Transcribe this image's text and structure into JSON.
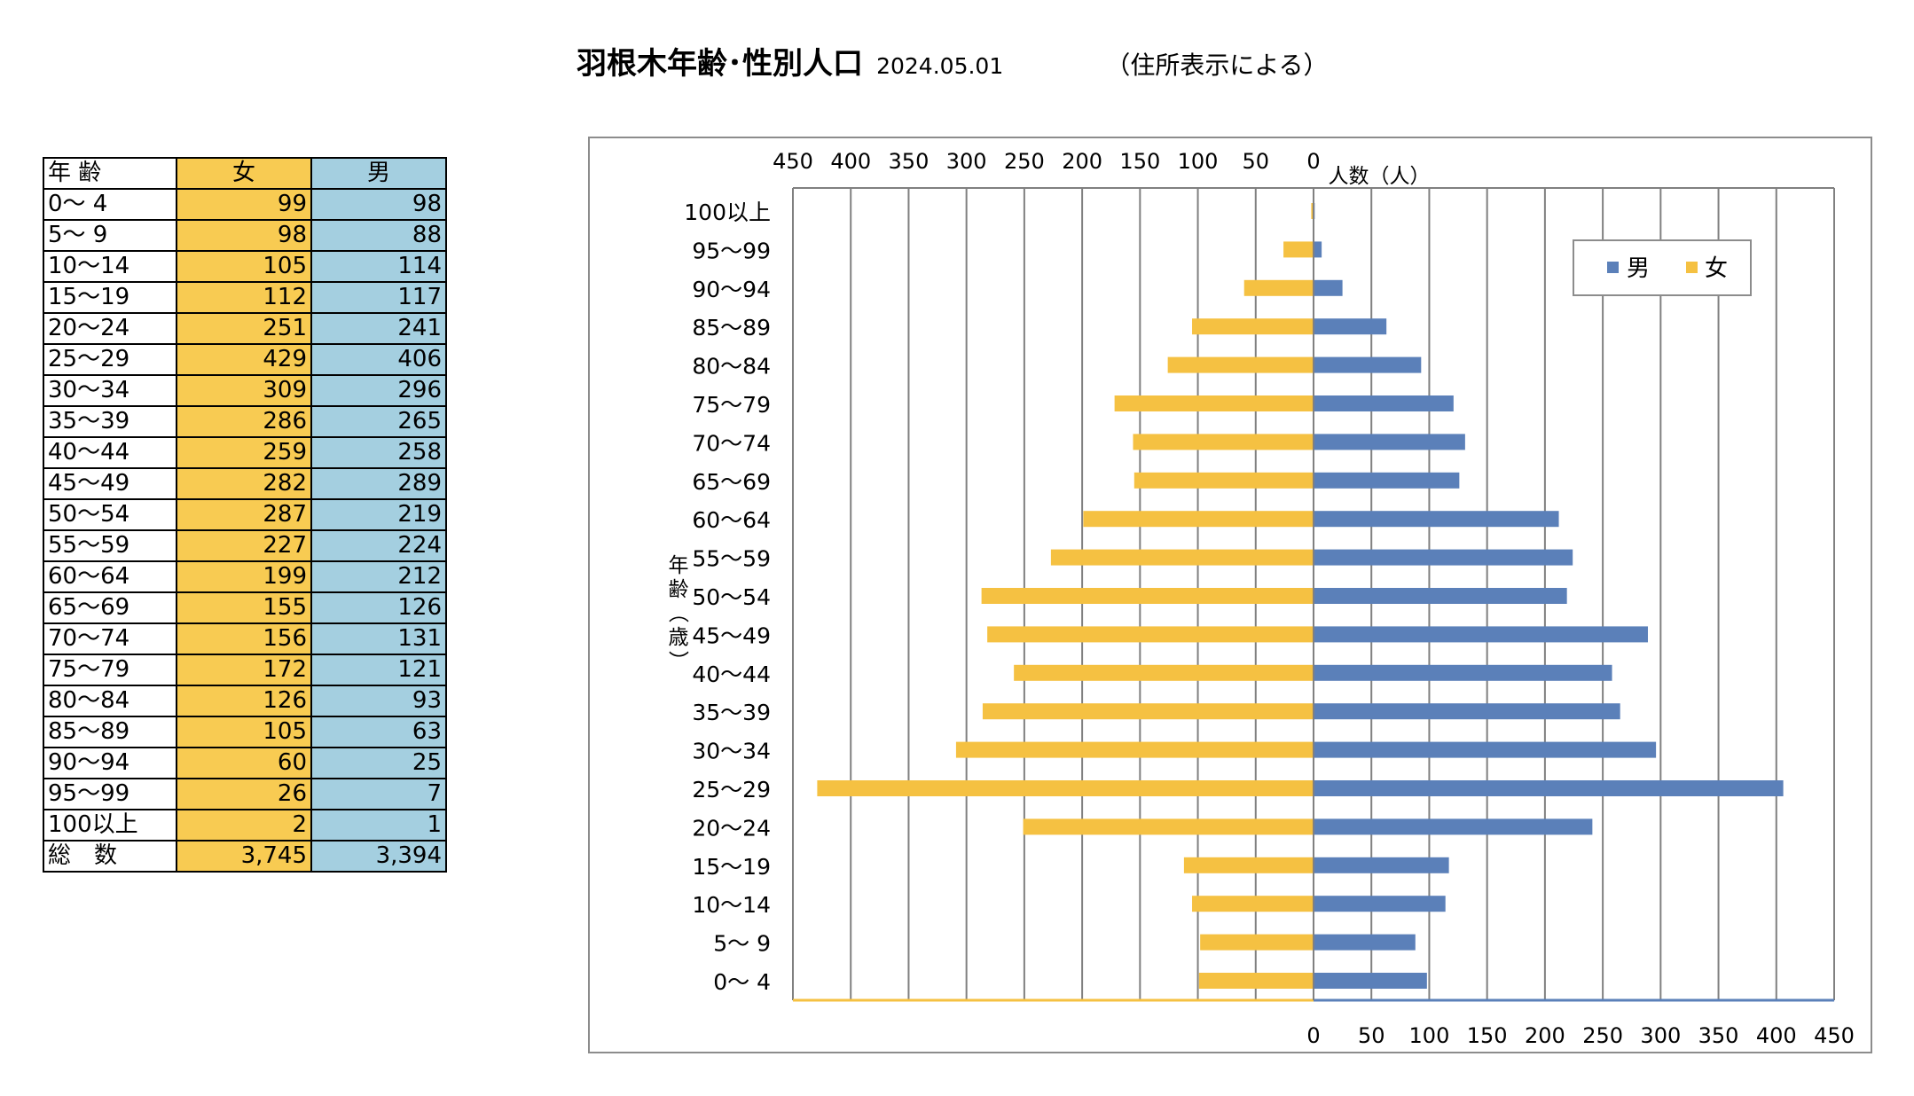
{
  "header": {
    "title": "羽根木年齢･性別人口",
    "date": "2024.05.01",
    "note": "（住所表示による）"
  },
  "table": {
    "headers": [
      "年 齢",
      "女",
      "男"
    ],
    "rows": [
      {
        "age": "0～ 4",
        "female": "99",
        "male": "98"
      },
      {
        "age": "5～ 9",
        "female": "98",
        "male": "88"
      },
      {
        "age": "10～14",
        "female": "105",
        "male": "114"
      },
      {
        "age": "15～19",
        "female": "112",
        "male": "117"
      },
      {
        "age": "20～24",
        "female": "251",
        "male": "241"
      },
      {
        "age": "25～29",
        "female": "429",
        "male": "406"
      },
      {
        "age": "30～34",
        "female": "309",
        "male": "296"
      },
      {
        "age": "35～39",
        "female": "286",
        "male": "265"
      },
      {
        "age": "40～44",
        "female": "259",
        "male": "258"
      },
      {
        "age": "45～49",
        "female": "282",
        "male": "289"
      },
      {
        "age": "50～54",
        "female": "287",
        "male": "219"
      },
      {
        "age": "55～59",
        "female": "227",
        "male": "224"
      },
      {
        "age": "60～64",
        "female": "199",
        "male": "212"
      },
      {
        "age": "65～69",
        "female": "155",
        "male": "126"
      },
      {
        "age": "70～74",
        "female": "156",
        "male": "131"
      },
      {
        "age": "75～79",
        "female": "172",
        "male": "121"
      },
      {
        "age": "80～84",
        "female": "126",
        "male": "93"
      },
      {
        "age": "85～89",
        "female": "105",
        "male": "63"
      },
      {
        "age": "90～94",
        "female": "60",
        "male": "25"
      },
      {
        "age": "95～99",
        "female": "26",
        "male": "7"
      },
      {
        "age": "100以上",
        "female": "2",
        "male": "1"
      }
    ],
    "total": {
      "label": "総　数",
      "female": "3,745",
      "male": "3,394"
    }
  },
  "chart_data": {
    "type": "bar",
    "orientation": "horizontal-population-pyramid",
    "categories": [
      "0～ 4",
      "5～ 9",
      "10～14",
      "15～19",
      "20～24",
      "25～29",
      "30～34",
      "35～39",
      "40～44",
      "45～49",
      "50～54",
      "55～59",
      "60～64",
      "65～69",
      "70～74",
      "75～79",
      "80～84",
      "85～89",
      "90～94",
      "95～99",
      "100以上"
    ],
    "series": [
      {
        "name": "男",
        "color": "#5b80b9",
        "side": "right",
        "values": [
          98,
          88,
          114,
          117,
          241,
          406,
          296,
          265,
          258,
          289,
          219,
          224,
          212,
          126,
          131,
          121,
          93,
          63,
          25,
          7,
          1
        ]
      },
      {
        "name": "女",
        "color": "#f5c142",
        "side": "left",
        "values": [
          99,
          98,
          105,
          112,
          251,
          429,
          309,
          286,
          259,
          282,
          287,
          227,
          199,
          155,
          156,
          172,
          126,
          105,
          60,
          26,
          2
        ]
      }
    ],
    "xlim": [
      0,
      450
    ],
    "x_ticks": [
      0,
      50,
      100,
      150,
      200,
      250,
      300,
      350,
      400,
      450
    ],
    "xlabel": "人数（人）",
    "ylabel": "年齢（歳）",
    "grid": "vertical",
    "legend": "top-right",
    "axis_colors": {
      "female_axis": "#f5c142",
      "male_axis": "#5b80b9",
      "grid": "#808080"
    }
  }
}
